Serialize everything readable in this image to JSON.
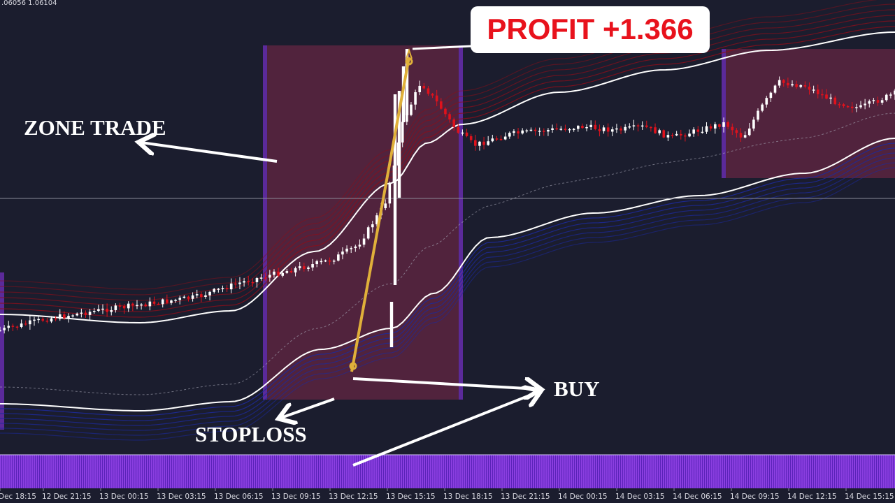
{
  "price_readout": ".06056 1.06104",
  "colors": {
    "background": "#1b1d2e",
    "bull_candle": "#ffffff",
    "bear_candle": "#e0121c",
    "zone_fill": "#5a2440",
    "zone_edge": "#5b2a9a",
    "upper_band": "#8b0f1a",
    "lower_band": "#1c2a9c",
    "volume_bars": "#8a3ee0",
    "profit_line": "#e0b03a"
  },
  "annotations": {
    "zone_trade": "ZONE TRADE",
    "profit": "PROFIT +1.366",
    "buy": "BUY",
    "stoploss": "STOPLOSS"
  },
  "chart_data": {
    "type": "candlestick",
    "title": "",
    "xlabel": "",
    "ylabel": "",
    "x_ticks": [
      "Dec 18:15",
      "12 Dec 21:15",
      "13 Dec 00:15",
      "13 Dec 03:15",
      "13 Dec 06:15",
      "13 Dec 09:15",
      "13 Dec 12:15",
      "13 Dec 15:15",
      "13 Dec 18:15",
      "13 Dec 21:15",
      "14 Dec 00:15",
      "14 Dec 03:15",
      "14 Dec 06:15",
      "14 Dec 09:15",
      "14 Dec 12:15",
      "14 Dec 15:15"
    ],
    "ylim": [
      0,
      100
    ],
    "grid": false,
    "zones": [
      {
        "x_from": 0.0,
        "x_to": 0.0
      },
      {
        "x_from": 29.3,
        "x_to": 51.5
      },
      {
        "x_from": 80.8,
        "x_to": 100
      }
    ],
    "trend": [
      {
        "x": 0,
        "y": 24
      },
      {
        "x": 5,
        "y": 27
      },
      {
        "x": 10,
        "y": 29
      },
      {
        "x": 16,
        "y": 31
      },
      {
        "x": 22,
        "y": 33
      },
      {
        "x": 27,
        "y": 37
      },
      {
        "x": 32,
        "y": 40
      },
      {
        "x": 37,
        "y": 43
      },
      {
        "x": 40,
        "y": 47
      },
      {
        "x": 43,
        "y": 58
      },
      {
        "x": 45,
        "y": 80
      },
      {
        "x": 47,
        "y": 91
      },
      {
        "x": 49,
        "y": 85
      },
      {
        "x": 51,
        "y": 78
      },
      {
        "x": 53,
        "y": 74
      },
      {
        "x": 57,
        "y": 77
      },
      {
        "x": 61,
        "y": 78
      },
      {
        "x": 65,
        "y": 79
      },
      {
        "x": 69,
        "y": 78
      },
      {
        "x": 72,
        "y": 79
      },
      {
        "x": 75,
        "y": 76
      },
      {
        "x": 78,
        "y": 78
      },
      {
        "x": 81,
        "y": 80
      },
      {
        "x": 83,
        "y": 76
      },
      {
        "x": 85,
        "y": 84
      },
      {
        "x": 87,
        "y": 91
      },
      {
        "x": 90,
        "y": 90
      },
      {
        "x": 93,
        "y": 86
      },
      {
        "x": 96,
        "y": 84
      },
      {
        "x": 100,
        "y": 88
      }
    ],
    "trade": {
      "entry_x": 39.5,
      "entry_y": 30,
      "exit_x": 45.5,
      "exit_y": 97
    }
  }
}
